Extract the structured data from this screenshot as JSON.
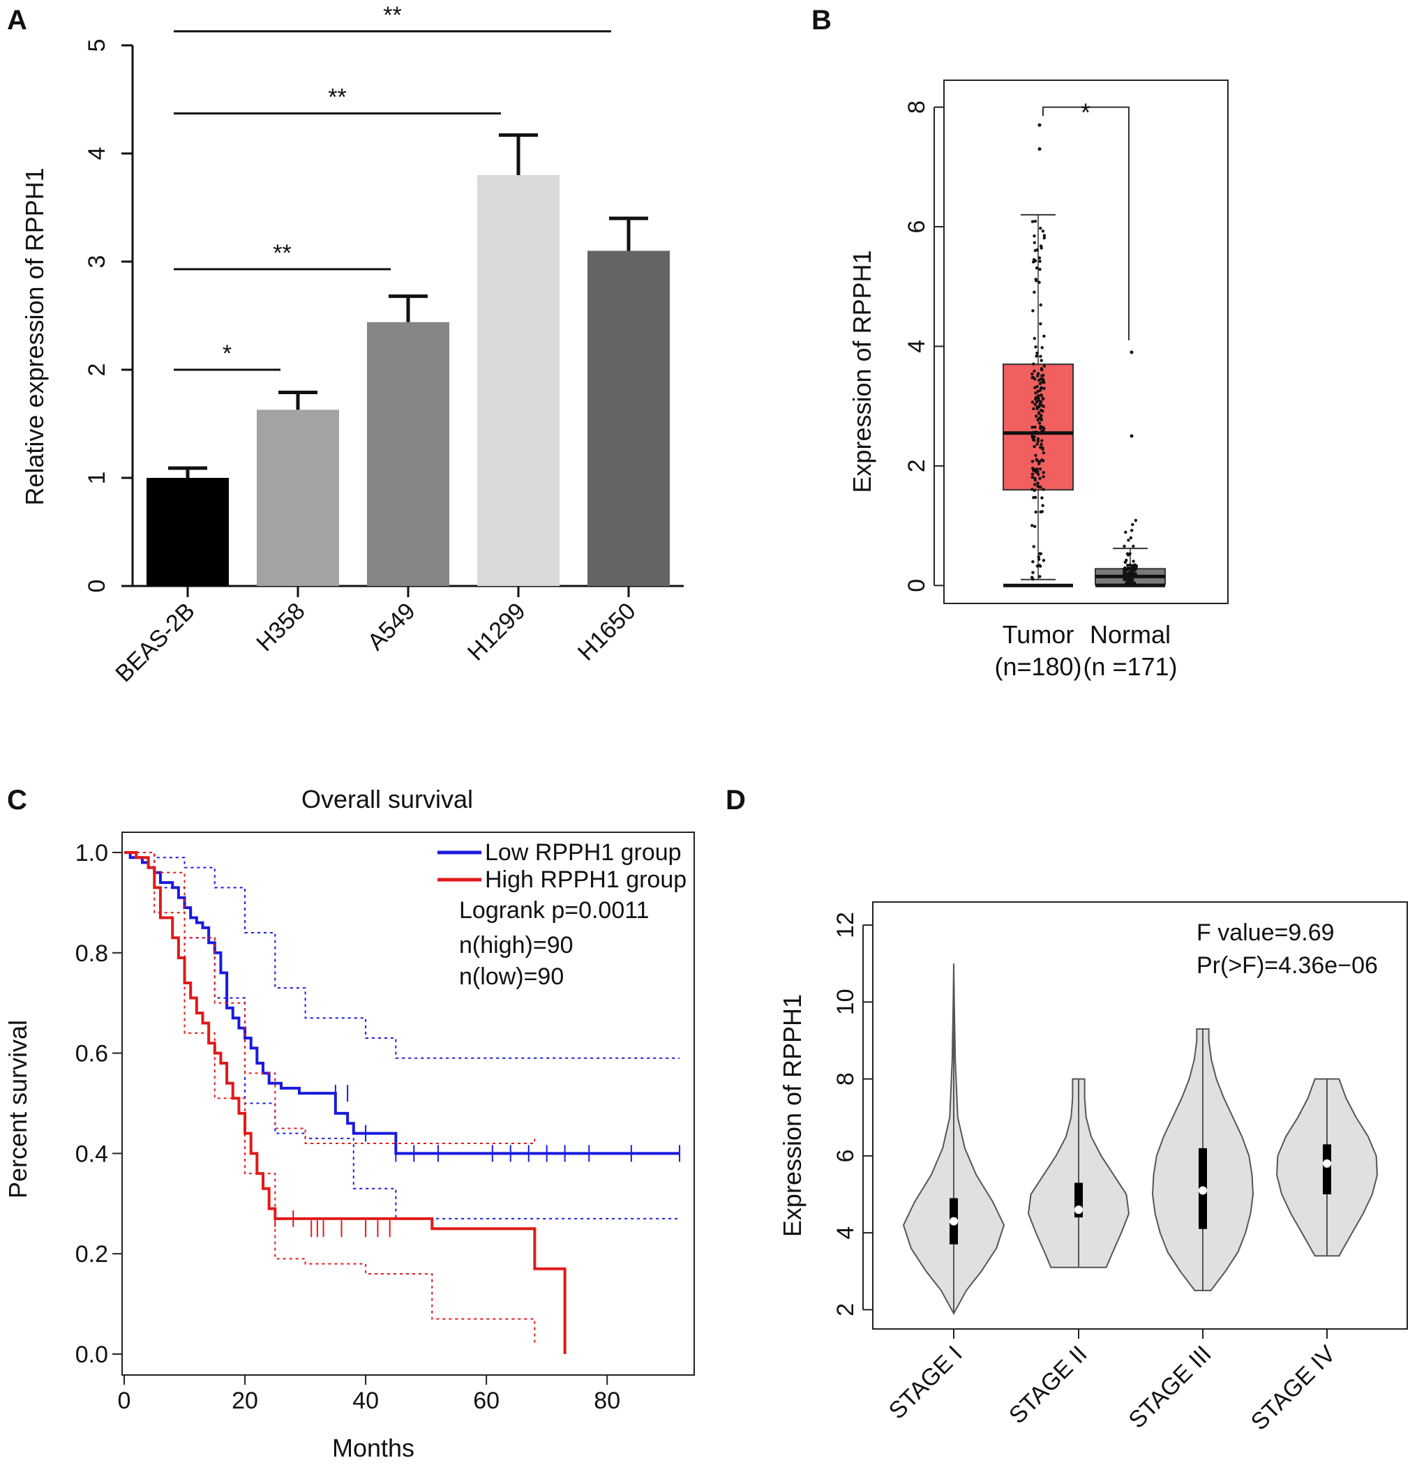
{
  "figure": {
    "panels": [
      "A",
      "B",
      "C",
      "D"
    ]
  },
  "chart_data": [
    {
      "panel": "A",
      "type": "bar",
      "ylabel": "Relative expression of RPPH1",
      "ylim": [
        0,
        5
      ],
      "yticks": [
        "0",
        "1",
        "2",
        "3",
        "4",
        "5"
      ],
      "categories": [
        "BEAS-2B",
        "H358",
        "A549",
        "H1299",
        "H1650"
      ],
      "values": [
        1.0,
        1.63,
        2.44,
        3.8,
        3.1
      ],
      "errors": [
        0.09,
        0.16,
        0.24,
        0.37,
        0.3
      ],
      "bar_colors": [
        "#000000",
        "#a3a3a6",
        "#858585",
        "#d9d9d9",
        "#646464"
      ],
      "significance": [
        {
          "from": "BEAS-2B",
          "to": "H358",
          "label": "*",
          "y": 2.0
        },
        {
          "from": "BEAS-2B",
          "to": "A549",
          "label": "**",
          "y": 2.93
        },
        {
          "from": "BEAS-2B",
          "to": "H1299",
          "label": "**",
          "y": 4.37
        },
        {
          "from": "BEAS-2B",
          "to": "H1650",
          "label": "**",
          "y": 5.13
        }
      ]
    },
    {
      "panel": "B",
      "type": "box",
      "ylabel": "Expression of RPPH1",
      "ylim": [
        -0.3,
        8.45
      ],
      "yticks": [
        "0",
        "2",
        "4",
        "6",
        "8"
      ],
      "groups": [
        {
          "name": "Tumor",
          "n_label": "(n=180)",
          "color": "#f25f5f",
          "q1": 1.6,
          "median": 2.55,
          "q3": 3.7,
          "whisker_low": 0.1,
          "whisker_high": 6.2
        },
        {
          "name": "Normal",
          "n_label": "(n =171)",
          "color": "#7a7a7a",
          "q1": 0.02,
          "median": 0.15,
          "q3": 0.28,
          "whisker_low": 0.0,
          "whisker_high": 0.62
        }
      ],
      "significance": {
        "label": "*"
      }
    },
    {
      "panel": "C",
      "type": "line",
      "title": "Overall survival",
      "xlabel": "Months",
      "ylabel": "Percent survival",
      "xlim": [
        0,
        95
      ],
      "ylim": [
        0,
        1.0
      ],
      "xticks": [
        "0",
        "20",
        "40",
        "60",
        "80"
      ],
      "yticks": [
        "0.0",
        "0.2",
        "0.4",
        "0.6",
        "0.8",
        "1.0"
      ],
      "series": [
        {
          "name": "Low RPPH1 group",
          "color": "#1a1adf",
          "x": [
            0,
            1,
            3,
            4,
            5,
            6,
            8,
            9,
            10,
            11,
            12,
            13,
            14,
            15,
            16,
            17,
            18,
            19,
            20,
            21,
            22,
            23,
            24,
            26,
            29,
            35,
            37,
            38,
            40,
            45,
            92
          ],
          "y": [
            1.0,
            0.99,
            0.98,
            0.97,
            0.96,
            0.94,
            0.93,
            0.91,
            0.89,
            0.87,
            0.86,
            0.85,
            0.82,
            0.8,
            0.76,
            0.69,
            0.67,
            0.65,
            0.63,
            0.61,
            0.58,
            0.56,
            0.54,
            0.53,
            0.52,
            0.48,
            0.46,
            0.44,
            0.44,
            0.4,
            0.4
          ],
          "ci_upper": [
            [
              0,
              1.0
            ],
            [
              5,
              0.99
            ],
            [
              10,
              0.97
            ],
            [
              15,
              0.93
            ],
            [
              20,
              0.84
            ],
            [
              25,
              0.73
            ],
            [
              30,
              0.67
            ],
            [
              35,
              0.67
            ],
            [
              40,
              0.63
            ],
            [
              45,
              0.59
            ],
            [
              92,
              0.59
            ]
          ],
          "ci_lower": [
            [
              0,
              1.0
            ],
            [
              5,
              0.93
            ],
            [
              10,
              0.83
            ],
            [
              15,
              0.71
            ],
            [
              20,
              0.5
            ],
            [
              25,
              0.44
            ],
            [
              30,
              0.43
            ],
            [
              38,
              0.33
            ],
            [
              45,
              0.27
            ],
            [
              92,
              0.27
            ]
          ]
        },
        {
          "name": "High RPPH1 group",
          "color": "#e01a1a",
          "x": [
            0,
            2,
            4,
            5,
            6,
            8,
            9,
            10,
            11,
            12,
            13,
            14,
            15,
            16,
            17,
            18,
            19,
            20,
            21,
            22,
            23,
            24,
            25,
            51,
            68,
            73
          ],
          "y": [
            1.0,
            0.99,
            0.97,
            0.93,
            0.87,
            0.83,
            0.79,
            0.74,
            0.71,
            0.68,
            0.66,
            0.62,
            0.6,
            0.58,
            0.54,
            0.51,
            0.48,
            0.44,
            0.4,
            0.36,
            0.33,
            0.29,
            0.27,
            0.25,
            0.17,
            0.08
          ],
          "end_x": 73,
          "end_y": 0.0,
          "ci_upper": [
            [
              0,
              1.0
            ],
            [
              5,
              0.96
            ],
            [
              10,
              0.83
            ],
            [
              15,
              0.7
            ],
            [
              20,
              0.56
            ],
            [
              25,
              0.45
            ],
            [
              30,
              0.42
            ],
            [
              40,
              0.42
            ],
            [
              51,
              0.42
            ],
            [
              68,
              0.43
            ]
          ],
          "ci_lower": [
            [
              0,
              1.0
            ],
            [
              5,
              0.88
            ],
            [
              10,
              0.64
            ],
            [
              15,
              0.51
            ],
            [
              20,
              0.36
            ],
            [
              25,
              0.19
            ],
            [
              30,
              0.18
            ],
            [
              40,
              0.16
            ],
            [
              51,
              0.16
            ],
            [
              51,
              0.07
            ],
            [
              68,
              0.07
            ],
            [
              68,
              0.02
            ]
          ]
        }
      ],
      "legend": [
        "Low RPPH1 group",
        "High RPPH1 group"
      ],
      "annotations": [
        "Logrank p=0.0011",
        "n(high)=90",
        "n(low)=90"
      ]
    },
    {
      "panel": "D",
      "type": "violin",
      "ylabel": "Expression of RPPH1",
      "ylim": [
        1.5,
        12.6
      ],
      "yticks": [
        "2",
        "4",
        "6",
        "8",
        "10",
        "12"
      ],
      "categories": [
        "STAGE I",
        "STAGE II",
        "STAGE III",
        "STAGE IV"
      ],
      "violins": [
        {
          "min": 1.9,
          "max": 11.0,
          "q1": 3.7,
          "median": 4.3,
          "q3": 4.9,
          "width_profile": [
            [
              1.9,
              0.0
            ],
            [
              2.5,
              0.25
            ],
            [
              3.0,
              0.55
            ],
            [
              3.6,
              0.85
            ],
            [
              4.2,
              1.0
            ],
            [
              4.8,
              0.78
            ],
            [
              5.5,
              0.45
            ],
            [
              6.2,
              0.22
            ],
            [
              7.0,
              0.08
            ],
            [
              8.5,
              0.03
            ],
            [
              10.0,
              0.01
            ],
            [
              11.0,
              0.0
            ]
          ]
        },
        {
          "min": 3.1,
          "max": 8.0,
          "q1": 4.4,
          "median": 4.6,
          "q3": 5.3,
          "width_profile": [
            [
              3.1,
              0.55
            ],
            [
              3.5,
              0.68
            ],
            [
              4.0,
              0.85
            ],
            [
              4.5,
              1.0
            ],
            [
              5.0,
              0.95
            ],
            [
              5.5,
              0.7
            ],
            [
              6.0,
              0.45
            ],
            [
              6.5,
              0.25
            ],
            [
              7.0,
              0.15
            ],
            [
              7.5,
              0.12
            ],
            [
              8.0,
              0.12
            ]
          ]
        },
        {
          "min": 2.5,
          "max": 9.3,
          "q1": 4.1,
          "median": 5.1,
          "q3": 6.2,
          "width_profile": [
            [
              2.5,
              0.16
            ],
            [
              3.0,
              0.45
            ],
            [
              3.5,
              0.7
            ],
            [
              4.0,
              0.85
            ],
            [
              4.5,
              0.95
            ],
            [
              5.0,
              1.0
            ],
            [
              5.5,
              0.98
            ],
            [
              6.0,
              0.92
            ],
            [
              6.5,
              0.78
            ],
            [
              7.0,
              0.6
            ],
            [
              7.5,
              0.42
            ],
            [
              8.0,
              0.27
            ],
            [
              8.5,
              0.17
            ],
            [
              9.0,
              0.12
            ],
            [
              9.3,
              0.12
            ]
          ]
        },
        {
          "min": 3.4,
          "max": 8.0,
          "q1": 5.0,
          "median": 5.8,
          "q3": 6.3,
          "width_profile": [
            [
              3.4,
              0.24
            ],
            [
              4.0,
              0.5
            ],
            [
              4.5,
              0.72
            ],
            [
              5.0,
              0.9
            ],
            [
              5.5,
              1.0
            ],
            [
              6.0,
              0.98
            ],
            [
              6.5,
              0.82
            ],
            [
              7.0,
              0.58
            ],
            [
              7.5,
              0.38
            ],
            [
              8.0,
              0.24
            ]
          ]
        }
      ],
      "fill_color": "#e0e0e0",
      "annotations": [
        "F value=9.69",
        "Pr(>F)=4.36e−06"
      ]
    }
  ]
}
